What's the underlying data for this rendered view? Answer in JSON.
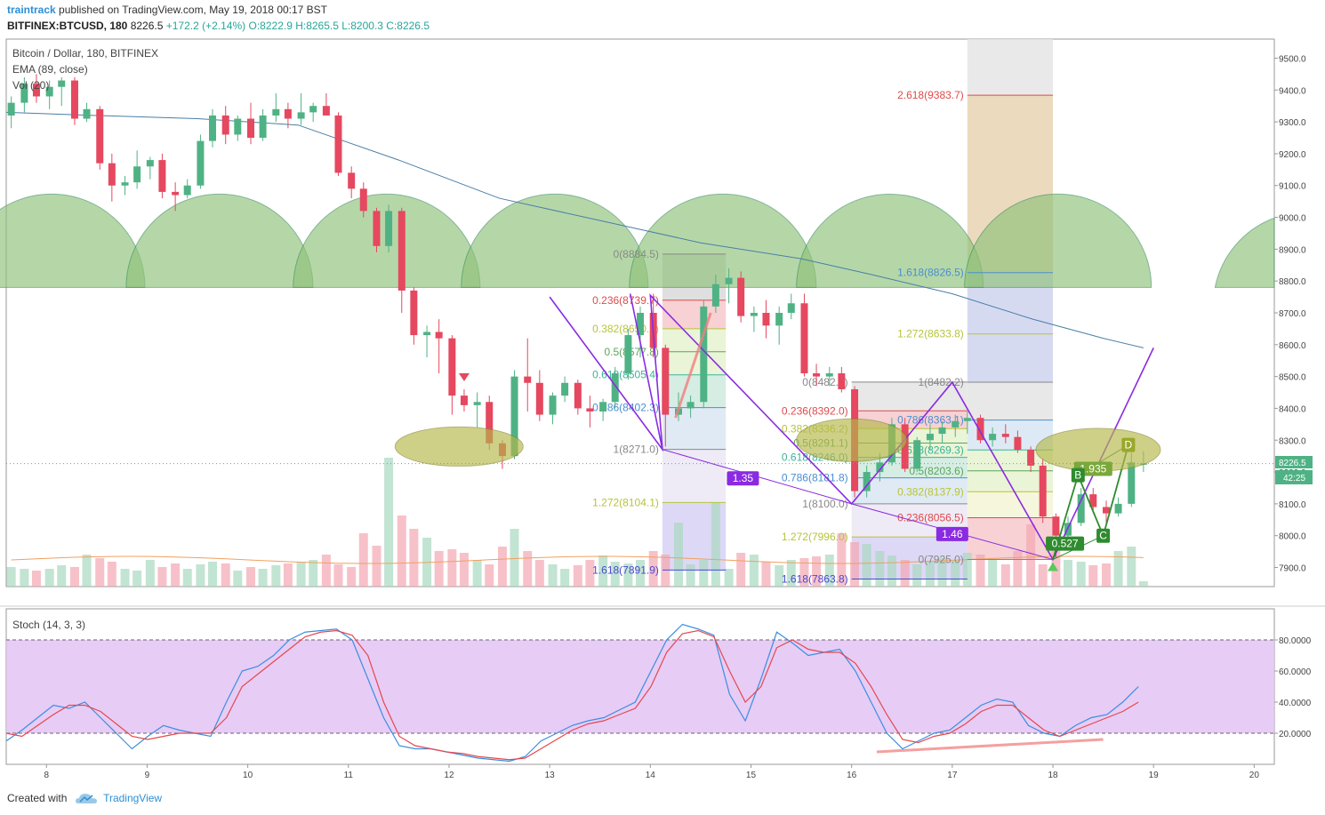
{
  "header": {
    "user": "traintrack",
    "published": "published on TradingView.com, May 19, 2018 00:17 BST",
    "symbol": "BITFINEX:BTCUSD, 180",
    "price": "8226.5",
    "change": "+172.2 (+2.14%)",
    "ohlc": "O:8222.9 H:8265.5 L:8200.3 C:8226.5"
  },
  "legend": {
    "title": "Bitcoin / Dollar, 180, BITFINEX",
    "ema": "EMA (89, close)",
    "vol": "Vol (20)",
    "stoch": "Stoch (14, 3, 3)"
  },
  "price_badge": {
    "value": "8226.5",
    "countdown": "42:25"
  },
  "footer": {
    "created": "Created with",
    "brand": "TradingView"
  },
  "colors": {
    "up": "#4fb285",
    "down": "#e5485f",
    "ema": "#4a7ea6",
    "purple": "#8a2be2",
    "green_arc": "#8fc27a",
    "stoch_k": "#3b8ee0",
    "stoch_d": "#e5484d"
  },
  "chart_data": [
    {
      "type": "candlestick",
      "title": "Bitcoin / Dollar, 180, BITFINEX",
      "x_ticks": [
        "8",
        "9",
        "10",
        "11",
        "12",
        "13",
        "14",
        "15",
        "16",
        "17",
        "18",
        "19",
        "20"
      ],
      "y_ticks": [
        "7900.0",
        "8000.0",
        "8100.0",
        "8200.0",
        "8300.0",
        "8400.0",
        "8500.0",
        "8600.0",
        "8700.0",
        "8800.0",
        "8900.0",
        "9000.0",
        "9100.0",
        "9200.0",
        "9300.0",
        "9400.0",
        "9500.0"
      ],
      "ylim": [
        7840,
        9560
      ],
      "xlim": [
        7.6,
        20.2
      ],
      "candles": [
        [
          7.65,
          9320,
          9380,
          9280,
          9360
        ],
        [
          7.78,
          9360,
          9440,
          9330,
          9420
        ],
        [
          7.9,
          9420,
          9450,
          9360,
          9380
        ],
        [
          8.03,
          9380,
          9430,
          9340,
          9410
        ],
        [
          8.15,
          9410,
          9440,
          9350,
          9430
        ],
        [
          8.28,
          9430,
          9440,
          9290,
          9310
        ],
        [
          8.4,
          9310,
          9360,
          9300,
          9340
        ],
        [
          8.53,
          9340,
          9350,
          9150,
          9170
        ],
        [
          8.65,
          9170,
          9200,
          9050,
          9100
        ],
        [
          8.78,
          9100,
          9130,
          9070,
          9110
        ],
        [
          8.9,
          9110,
          9210,
          9090,
          9160
        ],
        [
          9.03,
          9160,
          9190,
          9120,
          9180
        ],
        [
          9.15,
          9180,
          9200,
          9060,
          9080
        ],
        [
          9.28,
          9080,
          9110,
          9020,
          9070
        ],
        [
          9.4,
          9070,
          9120,
          9060,
          9100
        ],
        [
          9.53,
          9100,
          9260,
          9090,
          9240
        ],
        [
          9.65,
          9240,
          9340,
          9220,
          9320
        ],
        [
          9.78,
          9320,
          9350,
          9230,
          9260
        ],
        [
          9.9,
          9260,
          9320,
          9240,
          9310
        ],
        [
          10.03,
          9310,
          9360,
          9230,
          9250
        ],
        [
          10.15,
          9250,
          9340,
          9240,
          9320
        ],
        [
          10.28,
          9320,
          9390,
          9300,
          9340
        ],
        [
          10.4,
          9340,
          9360,
          9280,
          9310
        ],
        [
          10.53,
          9310,
          9390,
          9290,
          9330
        ],
        [
          10.65,
          9330,
          9360,
          9300,
          9350
        ],
        [
          10.78,
          9350,
          9390,
          9320,
          9320
        ],
        [
          10.9,
          9320,
          9330,
          9130,
          9140
        ],
        [
          11.03,
          9140,
          9160,
          9060,
          9090
        ],
        [
          11.15,
          9090,
          9110,
          9000,
          9020
        ],
        [
          11.28,
          9020,
          9030,
          8890,
          8910
        ],
        [
          11.4,
          8910,
          9040,
          8890,
          9020
        ],
        [
          11.53,
          9020,
          9030,
          8700,
          8770
        ],
        [
          11.65,
          8770,
          8780,
          8600,
          8630
        ],
        [
          11.78,
          8630,
          8660,
          8560,
          8640
        ],
        [
          11.9,
          8640,
          8680,
          8510,
          8620
        ],
        [
          12.03,
          8620,
          8630,
          8380,
          8440
        ],
        [
          12.15,
          8440,
          8460,
          8390,
          8410
        ],
        [
          12.28,
          8410,
          8450,
          8340,
          8420
        ],
        [
          12.4,
          8420,
          8440,
          8270,
          8290
        ],
        [
          12.53,
          8290,
          8300,
          8210,
          8250
        ],
        [
          12.65,
          8250,
          8520,
          8240,
          8500
        ],
        [
          12.78,
          8500,
          8620,
          8390,
          8480
        ],
        [
          12.9,
          8480,
          8520,
          8360,
          8380
        ],
        [
          13.03,
          8380,
          8450,
          8350,
          8440
        ],
        [
          13.15,
          8440,
          8500,
          8420,
          8480
        ],
        [
          13.28,
          8480,
          8490,
          8380,
          8400
        ],
        [
          13.4,
          8400,
          8440,
          8340,
          8390
        ],
        [
          13.53,
          8390,
          8430,
          8360,
          8420
        ],
        [
          13.65,
          8420,
          8530,
          8400,
          8510
        ],
        [
          13.78,
          8510,
          8650,
          8490,
          8630
        ],
        [
          13.9,
          8630,
          8720,
          8560,
          8700
        ],
        [
          14.03,
          8700,
          8760,
          8560,
          8590
        ],
        [
          14.15,
          8590,
          8600,
          8280,
          8380
        ],
        [
          14.28,
          8380,
          8450,
          8360,
          8400
        ],
        [
          14.4,
          8400,
          8440,
          8370,
          8420
        ],
        [
          14.53,
          8420,
          8740,
          8400,
          8720
        ],
        [
          14.65,
          8720,
          8820,
          8700,
          8790
        ],
        [
          14.78,
          8790,
          8840,
          8730,
          8810
        ],
        [
          14.9,
          8810,
          8830,
          8670,
          8690
        ],
        [
          15.03,
          8690,
          8720,
          8640,
          8700
        ],
        [
          15.15,
          8700,
          8740,
          8620,
          8660
        ],
        [
          15.28,
          8660,
          8720,
          8600,
          8700
        ],
        [
          15.4,
          8700,
          8760,
          8680,
          8730
        ],
        [
          15.53,
          8730,
          8760,
          8500,
          8510
        ],
        [
          15.65,
          8510,
          8540,
          8470,
          8500
        ],
        [
          15.78,
          8500,
          8530,
          8470,
          8510
        ],
        [
          15.9,
          8510,
          8530,
          8450,
          8460
        ],
        [
          16.03,
          8460,
          8470,
          8120,
          8140
        ],
        [
          16.15,
          8140,
          8220,
          8120,
          8200
        ],
        [
          16.28,
          8200,
          8260,
          8170,
          8230
        ],
        [
          16.4,
          8230,
          8370,
          8220,
          8350
        ],
        [
          16.53,
          8350,
          8370,
          8200,
          8210
        ],
        [
          16.65,
          8210,
          8310,
          8200,
          8300
        ],
        [
          16.78,
          8300,
          8350,
          8270,
          8320
        ],
        [
          16.9,
          8320,
          8360,
          8290,
          8340
        ],
        [
          17.03,
          8340,
          8380,
          8310,
          8360
        ],
        [
          17.15,
          8360,
          8390,
          8320,
          8370
        ],
        [
          17.28,
          8370,
          8380,
          8290,
          8300
        ],
        [
          17.4,
          8300,
          8340,
          8280,
          8320
        ],
        [
          17.53,
          8320,
          8350,
          8290,
          8310
        ],
        [
          17.65,
          8310,
          8330,
          8260,
          8270
        ],
        [
          17.78,
          8270,
          8280,
          8200,
          8220
        ],
        [
          17.9,
          8220,
          8240,
          8040,
          8060
        ],
        [
          18.03,
          8060,
          8070,
          7930,
          8000
        ],
        [
          18.15,
          8000,
          8060,
          7990,
          8040
        ],
        [
          18.28,
          8040,
          8150,
          8030,
          8130
        ],
        [
          18.4,
          8130,
          8150,
          8080,
          8090
        ],
        [
          18.53,
          8090,
          8110,
          8040,
          8070
        ],
        [
          18.65,
          8070,
          8120,
          8060,
          8100
        ],
        [
          18.78,
          8100,
          8260,
          8090,
          8230
        ],
        [
          18.9,
          8222.9,
          8265.5,
          8200.3,
          8226.5
        ]
      ],
      "ema89": [
        [
          7.6,
          9330
        ],
        [
          8.5,
          9320
        ],
        [
          9.5,
          9310
        ],
        [
          10.5,
          9290
        ],
        [
          11.5,
          9180
        ],
        [
          12.5,
          9060
        ],
        [
          13.5,
          8990
        ],
        [
          14.5,
          8920
        ],
        [
          15.5,
          8870
        ],
        [
          16.2,
          8820
        ],
        [
          17.0,
          8760
        ],
        [
          17.8,
          8680
        ],
        [
          18.5,
          8620
        ],
        [
          18.9,
          8590
        ]
      ],
      "annotations": [
        "0(8884.5)",
        "0.236(8739.7)",
        "0.382(8650.2)",
        "0.5(8577.8)",
        "0.618(8505.4)",
        "0.786(8402.3)",
        "1(8271.0)",
        "1.272(8104.1)",
        "1.618(7891.9)",
        "0(8482.5)",
        "0.236(8392.0)",
        "0.382(8336.2)",
        "0.5(8291.1)",
        "0.618(8246.0)",
        "0.786(8181.8)",
        "1(8100.0)",
        "1.272(7996.0)",
        "1.618(7863.8)",
        "1(8482.2)",
        "0.786(8363.1)",
        "0.618(8269.3)",
        "0.5(8203.6)",
        "0.382(8137.9)",
        "0.236(8056.5)",
        "0(7925.0)",
        "2.618(9383.7)",
        "1.618(8826.5)",
        "1.272(8633.8)",
        "1.35",
        "1.46",
        "1.935",
        "0.527",
        "B",
        "C",
        "D"
      ]
    },
    {
      "type": "bar",
      "title": "Vol (20)"
    },
    {
      "type": "line",
      "title": "Stoch (14, 3, 3)",
      "y_ticks": [
        "20.0000",
        "40.0000",
        "60.0000",
        "80.0000"
      ],
      "ylim": [
        0,
        100
      ],
      "series": [
        {
          "values": [
            15,
            22,
            30,
            38,
            36,
            40,
            30,
            20,
            10,
            18,
            25,
            22,
            20,
            18,
            40,
            60,
            63,
            70,
            80,
            85,
            86,
            87,
            80,
            55,
            30,
            12,
            10,
            10,
            8,
            6,
            4,
            3,
            2,
            5,
            15,
            20,
            25,
            28,
            30,
            35,
            40,
            60,
            80,
            90,
            87,
            83,
            45,
            28,
            55,
            85,
            78,
            70,
            72,
            74,
            60,
            40,
            20,
            10,
            15,
            20,
            22,
            30,
            38,
            42,
            40,
            25,
            20,
            18,
            25,
            30,
            32,
            40,
            50
          ]
        },
        {
          "values": [
            20,
            18,
            25,
            32,
            38,
            38,
            34,
            26,
            18,
            16,
            18,
            20,
            20,
            20,
            30,
            50,
            58,
            66,
            74,
            82,
            85,
            86,
            83,
            70,
            40,
            18,
            12,
            10,
            8,
            7,
            5,
            4,
            3,
            4,
            10,
            16,
            22,
            26,
            28,
            32,
            36,
            50,
            72,
            84,
            86,
            82,
            60,
            40,
            50,
            75,
            80,
            74,
            72,
            72,
            65,
            50,
            32,
            16,
            14,
            18,
            20,
            26,
            34,
            38,
            38,
            30,
            22,
            18,
            22,
            26,
            30,
            34,
            40
          ]
        }
      ]
    }
  ]
}
